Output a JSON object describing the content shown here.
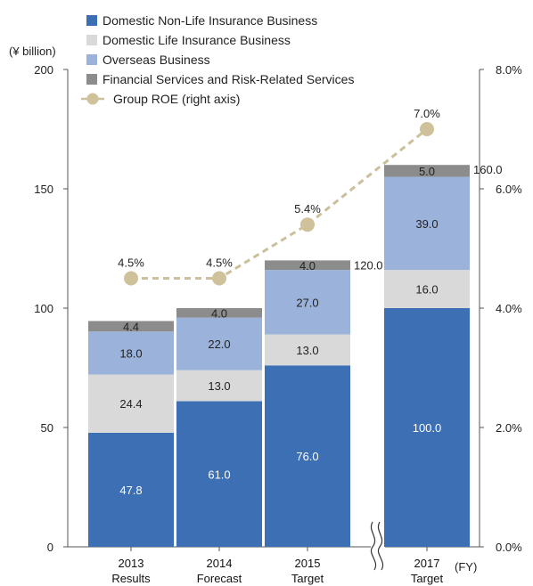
{
  "chart_data": {
    "type": "bar",
    "stacked": true,
    "ylabel": "(¥ billion)",
    "xunit": "(FY)",
    "ylim": [
      0,
      200
    ],
    "y_ticks": [
      "0",
      "50",
      "100",
      "150",
      "200"
    ],
    "y2lim": [
      0,
      8
    ],
    "y2_ticks": [
      "0.0%",
      "2.0%",
      "4.0%",
      "6.0%",
      "8.0%"
    ],
    "categories": [
      {
        "year": "2013",
        "label": "Results"
      },
      {
        "year": "2014",
        "label": "Forecast"
      },
      {
        "year": "2015",
        "label": "Target"
      },
      {
        "year": "2017",
        "label": "Target"
      }
    ],
    "series": [
      {
        "name": "Domestic Non-Life Insurance Business",
        "color": "#3d6fb4",
        "text_color": "#ffffff",
        "values": [
          47.8,
          61.0,
          76.0,
          100.0
        ],
        "labels": [
          "47.8",
          "61.0",
          "76.0",
          "100.0"
        ]
      },
      {
        "name": "Domestic Life Insurance Business",
        "color": "#d9d9d9",
        "text_color": "#222222",
        "values": [
          24.4,
          13.0,
          13.0,
          16.0
        ],
        "labels": [
          "24.4",
          "13.0",
          "13.0",
          "16.0"
        ]
      },
      {
        "name": "Overseas Business",
        "color": "#9bb3db",
        "text_color": "#222222",
        "values": [
          18.0,
          22.0,
          27.0,
          39.0
        ],
        "labels": [
          "18.0",
          "22.0",
          "27.0",
          "39.0"
        ]
      },
      {
        "name": "Financial Services and Risk-Related Services",
        "color": "#8c8c8c",
        "text_color": "#222222",
        "values": [
          4.4,
          4.0,
          4.0,
          5.0
        ],
        "labels": [
          "4.4",
          "4.0",
          "4.0",
          "5.0"
        ]
      }
    ],
    "totals": [
      "94.8",
      "100.0",
      "120.0",
      "160.0"
    ],
    "roe": {
      "name": "Group ROE (right axis)",
      "color": "#cfc199",
      "line_color": "#cbbf9c",
      "values": [
        4.5,
        4.5,
        5.4,
        7.0
      ],
      "labels": [
        "4.5%",
        "4.5%",
        "5.4%",
        "7.0%"
      ]
    },
    "axis_break_between": [
      "2015",
      "2017"
    ],
    "grid": false,
    "legend_position": "top-left"
  }
}
